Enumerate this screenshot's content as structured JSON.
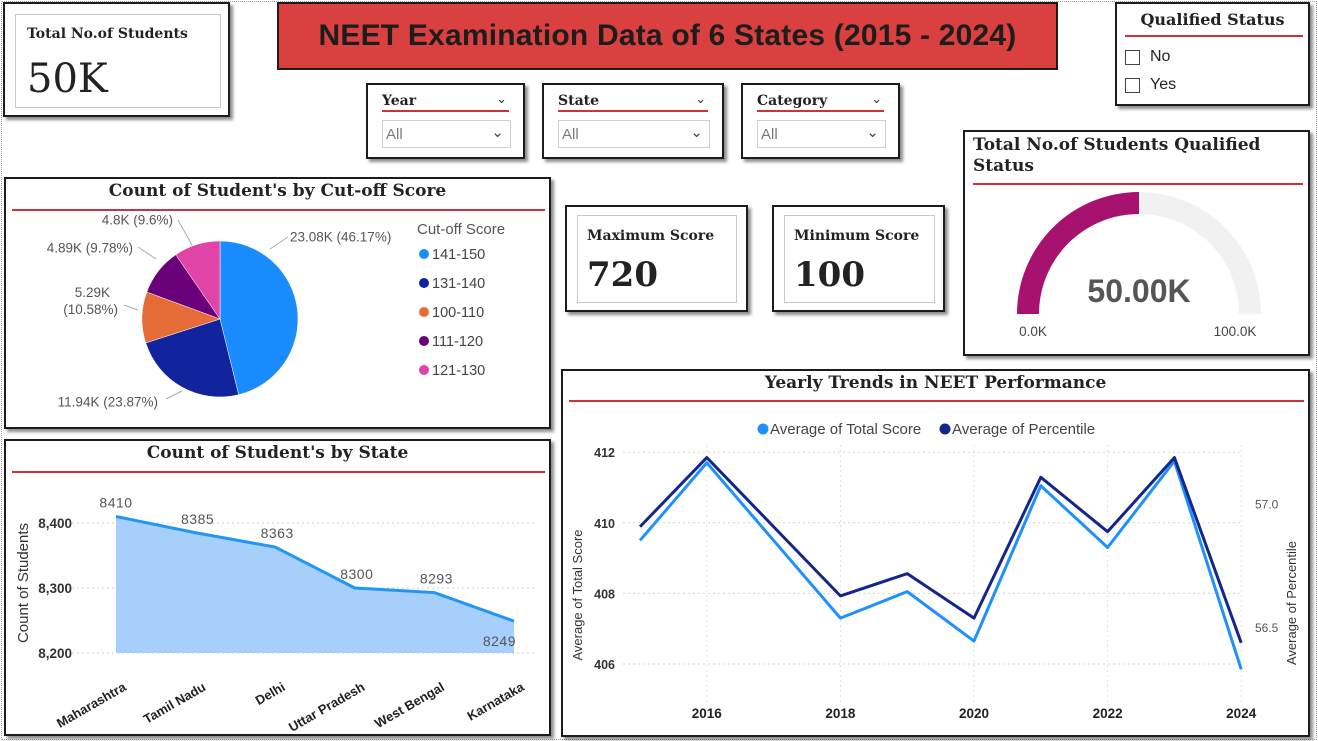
{
  "title": "NEET Examination Data of 6 States (2015 - 2024)",
  "kpi_total": {
    "label": "Total No.of Students",
    "value": "50K"
  },
  "slicers": [
    {
      "label": "Year",
      "value": "All"
    },
    {
      "label": "State",
      "value": "All"
    },
    {
      "label": "Category",
      "value": "All"
    }
  ],
  "qualified_slicer": {
    "title": "Qualified Status",
    "options": [
      "No",
      "Yes"
    ]
  },
  "max_score": {
    "label": "Maximum Score",
    "value": "720"
  },
  "min_score": {
    "label": "Minimum Score",
    "value": "100"
  },
  "colors": {
    "accent_rule": "#c9343a",
    "banner": "#d9403f",
    "gauge_fill": "#a8126f",
    "gauge_track": "#f1f1f1",
    "area_line": "#2196f3",
    "area_fill": "#a6d0fb",
    "line_total": "#1e90ff",
    "line_percentile": "#14268c"
  },
  "chart_data": [
    {
      "type": "pie",
      "title": "Count of Student's by Cut-off Score",
      "legend_title": "Cut-off Score",
      "legend_position": "right",
      "slices": [
        {
          "name": "141-150",
          "value": 23.08,
          "label": "23.08K (46.17%)",
          "color": "#1a8cff"
        },
        {
          "name": "131-140",
          "value": 11.94,
          "label": "11.94K (23.87%)",
          "color": "#12239e"
        },
        {
          "name": "100-110",
          "value": 5.29,
          "label_lines": [
            "5.29K",
            "(10.58%)"
          ],
          "color": "#e66c37"
        },
        {
          "name": "111-120",
          "value": 4.89,
          "label": "4.89K (9.78%)",
          "color": "#6b007b"
        },
        {
          "name": "121-130",
          "value": 4.8,
          "label": "4.8K (9.6%)",
          "color": "#e044a7"
        }
      ]
    },
    {
      "type": "area",
      "title": "Count of Student's by State",
      "ylabel": "Count of Students",
      "xlabel": "",
      "categories": [
        "Maharashtra",
        "Tamil Nadu",
        "Delhi",
        "Uttar Pradesh",
        "West Bengal",
        "Karnataka"
      ],
      "values": [
        8410,
        8385,
        8363,
        8300,
        8293,
        8249
      ],
      "yticks": [
        "8,400",
        "8,300",
        "8,200"
      ],
      "ylim": [
        8200,
        8400
      ],
      "grid": true
    },
    {
      "type": "line",
      "title": "Yearly Trends in NEET Performance",
      "legend_position": "top-center",
      "x": [
        2015,
        2016,
        2017,
        2018,
        2019,
        2020,
        2021,
        2022,
        2023,
        2024
      ],
      "xticks": [
        "2016",
        "2018",
        "2020",
        "2022",
        "2024"
      ],
      "ylabel_left": "Average of Total Score",
      "ylabel_right": "Average of Percentile",
      "yticks_left": [
        "412",
        "410",
        "408",
        "406"
      ],
      "yticks_right": [
        "57.0",
        "56.5"
      ],
      "ylim_left": [
        405.5,
        412.2
      ],
      "ylim_right": [
        56.33,
        57.2
      ],
      "series": [
        {
          "name": "Average of Total Score",
          "axis": "left",
          "values": [
            409.5,
            411.7,
            409.5,
            407.3,
            408.05,
            406.65,
            411.05,
            409.3,
            411.75,
            405.85
          ]
        },
        {
          "name": "Average of Percentile",
          "axis": "right",
          "values": [
            56.91,
            57.19,
            56.91,
            56.63,
            56.72,
            56.54,
            57.11,
            56.89,
            57.19,
            56.44
          ]
        }
      ],
      "grid": true
    },
    {
      "type": "gauge",
      "title": "Total No.of Students Qualified Status",
      "value": 50.0,
      "value_label": "50.00K",
      "min_label": "0.0K",
      "max_label": "100.0K",
      "range": [
        0,
        100
      ]
    }
  ]
}
